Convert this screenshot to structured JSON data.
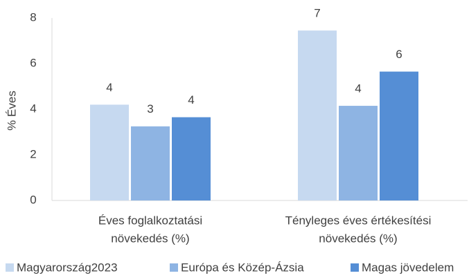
{
  "chart_data": {
    "type": "bar",
    "y_label": "% Éves",
    "categories": [
      [
        "Éves foglalkoztatási",
        "növekedés (%)"
      ],
      [
        "Tényleges éves értékesítési",
        "növekedés (%)"
      ]
    ],
    "series": [
      {
        "name": "Magyarország2023",
        "color": "#c6d9f0",
        "values": [
          4.2,
          7.45
        ],
        "value_labels": [
          "4",
          "7"
        ]
      },
      {
        "name": "Európa és Közép-Ázsia",
        "color": "#8eb4e3",
        "values": [
          3.25,
          4.15
        ],
        "value_labels": [
          "3",
          "4"
        ]
      },
      {
        "name": "Magas jövedelem",
        "color": "#558ed5",
        "values": [
          3.65,
          5.65
        ],
        "value_labels": [
          "4",
          "6"
        ]
      }
    ],
    "ylim": [
      0,
      8
    ],
    "yticks": [
      0,
      2,
      4,
      6,
      8
    ],
    "grid": false,
    "legend": "bottom"
  }
}
